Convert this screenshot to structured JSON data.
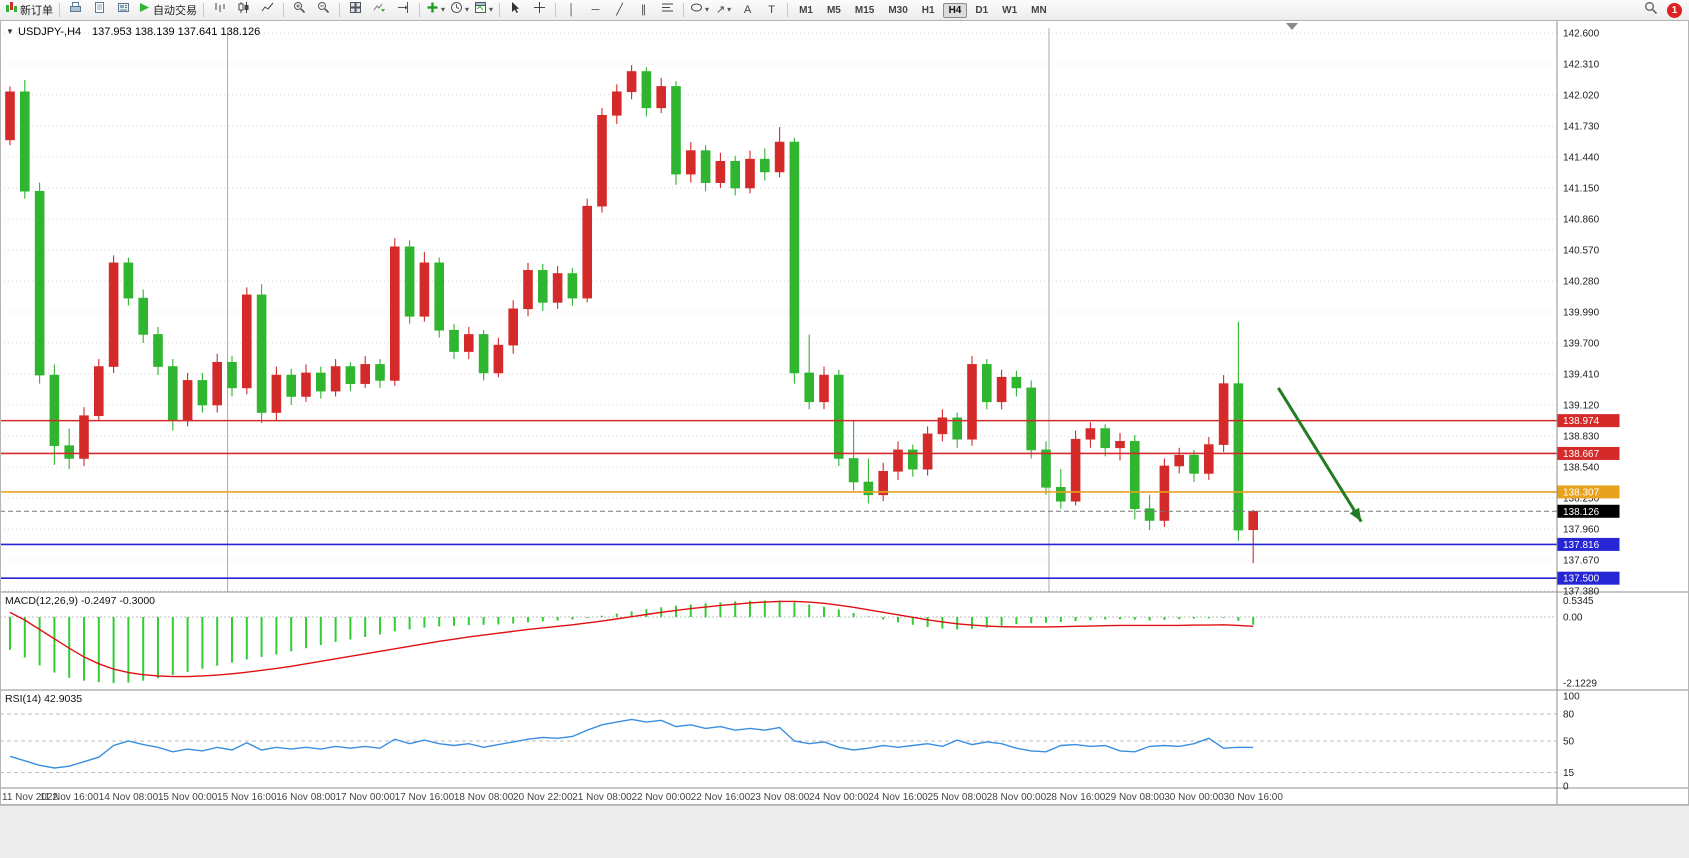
{
  "toolbar": {
    "new_order": "新订单",
    "autotrading": "自动交易",
    "timeframes": [
      "M1",
      "M5",
      "M15",
      "M30",
      "H1",
      "H4",
      "D1",
      "W1",
      "MN"
    ],
    "active_timeframe": "H4",
    "notification_count": "1"
  },
  "icons": {
    "dropdown": "▼",
    "caret": "▾",
    "crosshair": "+",
    "vline": "│",
    "hline": "─",
    "trendline": "╱",
    "channel": "∥",
    "arrow_tool": "↗",
    "text_tool": "A",
    "label_tool": "T"
  },
  "chart": {
    "symbol_period": "USDJPY-,H4",
    "ohlc_text": "137.953 138.139 137.641 138.126"
  },
  "chart_data": [
    {
      "type": "candlestick",
      "symbol": "USDJPY-",
      "timeframe": "H4",
      "up_color": "#D42A2A",
      "down_color": "#2FB52F",
      "ylim": [
        137.36,
        142.65
      ],
      "y_axis_labels": [
        "142.600",
        "142.310",
        "142.020",
        "141.730",
        "141.440",
        "141.150",
        "140.860",
        "140.570",
        "140.280",
        "139.990",
        "139.700",
        "139.410",
        "139.120",
        "138.830",
        "138.540",
        "138.250",
        "137.960",
        "137.670",
        "137.380"
      ],
      "x_labels": [
        {
          "text": "11 Nov 2022",
          "index": 0
        },
        {
          "text": "11 Nov 16:00",
          "index": 4
        },
        {
          "text": "14 Nov 08:00",
          "index": 8
        },
        {
          "text": "15 Nov 00:00",
          "index": 12
        },
        {
          "text": "15 Nov 16:00",
          "index": 16
        },
        {
          "text": "16 Nov 08:00",
          "index": 20
        },
        {
          "text": "17 Nov 00:00",
          "index": 24
        },
        {
          "text": "17 Nov 16:00",
          "index": 28
        },
        {
          "text": "18 Nov 08:00",
          "index": 32
        },
        {
          "text": "20 Nov 22:00",
          "index": 36
        },
        {
          "text": "21 Nov 08:00",
          "index": 40
        },
        {
          "text": "22 Nov 00:00",
          "index": 44
        },
        {
          "text": "22 Nov 16:00",
          "index": 48
        },
        {
          "text": "23 Nov 08:00",
          "index": 52
        },
        {
          "text": "24 Nov 00:00",
          "index": 56
        },
        {
          "text": "24 Nov 16:00",
          "index": 60
        },
        {
          "text": "25 Nov 08:00",
          "index": 64
        },
        {
          "text": "28 Nov 00:00",
          "index": 68
        },
        {
          "text": "28 Nov 16:00",
          "index": 72
        },
        {
          "text": "29 Nov 08:00",
          "index": 76
        },
        {
          "text": "30 Nov 00:00",
          "index": 80
        },
        {
          "text": "30 Nov 16:00",
          "index": 84
        }
      ],
      "candles": [
        [
          141.6,
          142.1,
          141.55,
          142.05
        ],
        [
          142.05,
          142.16,
          141.05,
          141.12
        ],
        [
          141.12,
          141.2,
          139.32,
          139.4
        ],
        [
          139.4,
          139.5,
          138.56,
          138.74
        ],
        [
          138.74,
          138.9,
          138.52,
          138.62
        ],
        [
          138.62,
          139.1,
          138.55,
          139.02
        ],
        [
          139.02,
          139.55,
          138.98,
          139.48
        ],
        [
          139.48,
          140.52,
          139.42,
          140.45
        ],
        [
          140.45,
          140.5,
          140.05,
          140.12
        ],
        [
          140.12,
          140.2,
          139.7,
          139.78
        ],
        [
          139.78,
          139.85,
          139.4,
          139.48
        ],
        [
          139.48,
          139.55,
          138.88,
          138.98
        ],
        [
          138.98,
          139.42,
          138.92,
          139.35
        ],
        [
          139.35,
          139.42,
          139.05,
          139.12
        ],
        [
          139.12,
          139.6,
          139.05,
          139.52
        ],
        [
          139.52,
          139.58,
          139.2,
          139.28
        ],
        [
          139.28,
          140.22,
          139.22,
          140.15
        ],
        [
          140.15,
          140.25,
          138.95,
          139.05
        ],
        [
          139.05,
          139.48,
          138.98,
          139.4
        ],
        [
          139.4,
          139.46,
          139.12,
          139.2
        ],
        [
          139.2,
          139.5,
          139.15,
          139.42
        ],
        [
          139.42,
          139.48,
          139.18,
          139.25
        ],
        [
          139.25,
          139.55,
          139.2,
          139.48
        ],
        [
          139.48,
          139.52,
          139.25,
          139.32
        ],
        [
          139.32,
          139.58,
          139.28,
          139.5
        ],
        [
          139.5,
          139.55,
          139.28,
          139.35
        ],
        [
          139.35,
          140.68,
          139.3,
          140.6
        ],
        [
          140.6,
          140.66,
          139.88,
          139.95
        ],
        [
          139.95,
          140.55,
          139.9,
          140.45
        ],
        [
          140.45,
          140.5,
          139.75,
          139.82
        ],
        [
          139.82,
          139.88,
          139.55,
          139.62
        ],
        [
          139.62,
          139.85,
          139.55,
          139.78
        ],
        [
          139.78,
          139.82,
          139.35,
          139.42
        ],
        [
          139.42,
          139.75,
          139.38,
          139.68
        ],
        [
          139.68,
          140.1,
          139.6,
          140.02
        ],
        [
          140.02,
          140.45,
          139.95,
          140.38
        ],
        [
          140.38,
          140.44,
          140.0,
          140.08
        ],
        [
          140.08,
          140.42,
          140.02,
          140.35
        ],
        [
          140.35,
          140.4,
          140.05,
          140.12
        ],
        [
          140.12,
          141.05,
          140.08,
          140.98
        ],
        [
          140.98,
          141.9,
          140.92,
          141.83
        ],
        [
          141.83,
          142.12,
          141.75,
          142.05
        ],
        [
          142.05,
          142.3,
          141.98,
          142.24
        ],
        [
          142.24,
          142.28,
          141.82,
          141.9
        ],
        [
          141.9,
          142.18,
          141.85,
          142.1
        ],
        [
          142.1,
          142.15,
          141.18,
          141.28
        ],
        [
          141.28,
          141.58,
          141.2,
          141.5
        ],
        [
          141.5,
          141.55,
          141.12,
          141.2
        ],
        [
          141.2,
          141.48,
          141.15,
          141.4
        ],
        [
          141.4,
          141.45,
          141.08,
          141.15
        ],
        [
          141.15,
          141.5,
          141.1,
          141.42
        ],
        [
          141.42,
          141.52,
          141.22,
          141.3
        ],
        [
          141.3,
          141.72,
          141.25,
          141.58
        ],
        [
          141.58,
          141.62,
          139.32,
          139.42
        ],
        [
          139.42,
          139.78,
          139.08,
          139.15
        ],
        [
          139.15,
          139.48,
          139.08,
          139.4
        ],
        [
          139.4,
          139.45,
          138.55,
          138.62
        ],
        [
          138.62,
          138.98,
          138.32,
          138.4
        ],
        [
          138.4,
          138.62,
          138.2,
          138.28
        ],
        [
          138.28,
          138.58,
          138.22,
          138.5
        ],
        [
          138.5,
          138.78,
          138.42,
          138.7
        ],
        [
          138.7,
          138.75,
          138.45,
          138.52
        ],
        [
          138.52,
          138.92,
          138.46,
          138.85
        ],
        [
          138.85,
          139.08,
          138.78,
          139.0
        ],
        [
          139.0,
          139.05,
          138.72,
          138.8
        ],
        [
          138.8,
          139.58,
          138.74,
          139.5
        ],
        [
          139.5,
          139.55,
          139.08,
          139.15
        ],
        [
          139.15,
          139.45,
          139.08,
          139.38
        ],
        [
          139.38,
          139.44,
          139.2,
          139.28
        ],
        [
          139.28,
          139.35,
          138.62,
          138.7
        ],
        [
          138.7,
          138.78,
          138.28,
          138.35
        ],
        [
          138.35,
          138.52,
          138.15,
          138.22
        ],
        [
          138.22,
          138.88,
          138.18,
          138.8
        ],
        [
          138.8,
          138.96,
          138.72,
          138.9
        ],
        [
          138.9,
          138.94,
          138.64,
          138.72
        ],
        [
          138.72,
          138.86,
          138.6,
          138.78
        ],
        [
          138.78,
          138.84,
          138.05,
          138.15
        ],
        [
          138.15,
          138.28,
          137.95,
          138.04
        ],
        [
          138.04,
          138.62,
          137.98,
          138.55
        ],
        [
          138.55,
          138.72,
          138.48,
          138.65
        ],
        [
          138.65,
          138.7,
          138.4,
          138.48
        ],
        [
          138.48,
          138.82,
          138.42,
          138.75
        ],
        [
          138.75,
          139.4,
          138.68,
          139.32
        ],
        [
          139.32,
          139.9,
          137.85,
          137.95
        ],
        [
          137.953,
          138.139,
          137.641,
          138.126
        ]
      ],
      "h_lines": [
        {
          "price": 138.974,
          "label": "138.974",
          "color": "#D42A2A"
        },
        {
          "price": 138.667,
          "label": "138.667",
          "color": "#D42A2A"
        },
        {
          "price": 138.307,
          "label": "138.307",
          "color": "#E8A21E"
        },
        {
          "price": 137.816,
          "label": "137.816",
          "color": "#2626D4"
        },
        {
          "price": 137.5,
          "label": "137.500",
          "color": "#2626D4"
        }
      ],
      "current_price": {
        "price": 138.126,
        "label": "138.126",
        "color": "#000000"
      },
      "arrow_annotation": {
        "from_index": 85.7,
        "from_price": 139.28,
        "to_index": 91.3,
        "to_price": 138.03,
        "color": "#227D22"
      },
      "separators_at_index": [
        14.7,
        70.2
      ]
    },
    {
      "type": "bar",
      "name": "MACD",
      "label": "MACD(12,26,9) -0.2497 -0.3000",
      "histogram_color": "#33CC33",
      "signal_color": "#E01010",
      "ylim": [
        -2.4,
        0.73
      ],
      "y_labels": [
        "0.5345",
        "0.00",
        "-2.1229"
      ],
      "histogram": [
        -1.05,
        -1.3,
        -1.55,
        -1.78,
        -1.95,
        -2.04,
        -2.09,
        -2.12,
        -2.1,
        -2.04,
        -1.96,
        -1.86,
        -1.76,
        -1.66,
        -1.56,
        -1.46,
        -1.36,
        -1.28,
        -1.2,
        -1.1,
        -1.0,
        -0.9,
        -0.8,
        -0.72,
        -0.64,
        -0.56,
        -0.46,
        -0.4,
        -0.34,
        -0.3,
        -0.28,
        -0.26,
        -0.25,
        -0.24,
        -0.21,
        -0.17,
        -0.14,
        -0.11,
        -0.08,
        -0.03,
        0.04,
        0.11,
        0.18,
        0.25,
        0.31,
        0.36,
        0.4,
        0.44,
        0.47,
        0.5,
        0.52,
        0.53,
        0.53,
        0.47,
        0.4,
        0.33,
        0.24,
        0.13,
        0.02,
        -0.08,
        -0.17,
        -0.25,
        -0.32,
        -0.37,
        -0.4,
        -0.38,
        -0.34,
        -0.28,
        -0.23,
        -0.2,
        -0.18,
        -0.16,
        -0.13,
        -0.1,
        -0.08,
        -0.07,
        -0.09,
        -0.11,
        -0.09,
        -0.07,
        -0.05,
        -0.04,
        -0.03,
        -0.12,
        -0.25
      ],
      "signal": [
        0.15,
        -0.1,
        -0.4,
        -0.7,
        -1.0,
        -1.28,
        -1.5,
        -1.67,
        -1.78,
        -1.85,
        -1.89,
        -1.91,
        -1.91,
        -1.89,
        -1.86,
        -1.82,
        -1.77,
        -1.71,
        -1.65,
        -1.58,
        -1.5,
        -1.42,
        -1.34,
        -1.26,
        -1.18,
        -1.1,
        -1.02,
        -0.94,
        -0.86,
        -0.78,
        -0.71,
        -0.64,
        -0.58,
        -0.52,
        -0.46,
        -0.4,
        -0.35,
        -0.3,
        -0.25,
        -0.19,
        -0.13,
        -0.06,
        0.01,
        0.08,
        0.15,
        0.21,
        0.27,
        0.32,
        0.37,
        0.41,
        0.45,
        0.48,
        0.5,
        0.5,
        0.48,
        0.44,
        0.38,
        0.31,
        0.23,
        0.15,
        0.07,
        -0.01,
        -0.09,
        -0.16,
        -0.22,
        -0.26,
        -0.29,
        -0.31,
        -0.32,
        -0.32,
        -0.32,
        -0.31,
        -0.3,
        -0.29,
        -0.28,
        -0.27,
        -0.27,
        -0.27,
        -0.27,
        -0.27,
        -0.26,
        -0.26,
        -0.25,
        -0.27,
        -0.3
      ]
    },
    {
      "type": "line",
      "name": "RSI",
      "label": "RSI(14) 42.9035",
      "line_color": "#3A8FE0",
      "ylim": [
        0,
        100
      ],
      "levels": [
        80,
        50,
        15
      ],
      "y_labels": [
        "100",
        "80",
        "50",
        "15",
        "0"
      ],
      "values": [
        33,
        28,
        23,
        20,
        22,
        27,
        32,
        45,
        50,
        46,
        43,
        38,
        41,
        39,
        43,
        40,
        48,
        40,
        43,
        41,
        43,
        41,
        44,
        42,
        44,
        42,
        52,
        47,
        51,
        47,
        45,
        47,
        43,
        46,
        49,
        52,
        54,
        53,
        55,
        62,
        68,
        71,
        74,
        71,
        73,
        66,
        68,
        64,
        66,
        62,
        64,
        62,
        65,
        50,
        47,
        49,
        43,
        40,
        42,
        45,
        43,
        45,
        47,
        44,
        51,
        46,
        49,
        47,
        42,
        39,
        38,
        45,
        46,
        44,
        45,
        39,
        38,
        44,
        45,
        44,
        47,
        53,
        42,
        43,
        42.9
      ]
    }
  ]
}
